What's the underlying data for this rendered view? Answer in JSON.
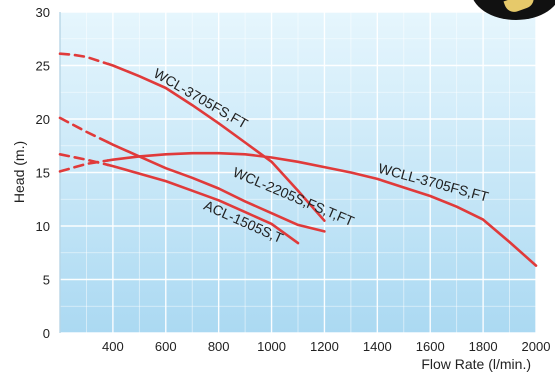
{
  "chart_data": {
    "type": "line",
    "title": "",
    "xlabel": "Flow Rate (l/min.)",
    "ylabel": "Head (m.)",
    "xlim": [
      200,
      2000
    ],
    "ylim": [
      0,
      30
    ],
    "x_ticks": [
      400,
      600,
      800,
      1000,
      1200,
      1400,
      1600,
      1800,
      2000
    ],
    "y_ticks": [
      0,
      5,
      10,
      15,
      20,
      25,
      30
    ],
    "grid": true,
    "line_color": "#e03a3a",
    "plot_bg_top": "#e6f6fd",
    "plot_bg_bottom": "#abd9f2",
    "series": [
      {
        "name": "WCL-3705FS,FT",
        "points": [
          [
            200,
            26.1
          ],
          [
            250,
            26.0
          ],
          [
            300,
            25.8
          ],
          [
            400,
            25.0
          ],
          [
            500,
            24.0
          ],
          [
            600,
            22.9
          ],
          [
            700,
            21.3
          ],
          [
            800,
            19.6
          ],
          [
            900,
            17.8
          ],
          [
            1000,
            16.0
          ],
          [
            1100,
            13.3
          ],
          [
            1200,
            10.5
          ]
        ],
        "dashed_until": 380
      },
      {
        "name": "WCLL-3705FS,FT",
        "points": [
          [
            200,
            15.1
          ],
          [
            300,
            15.8
          ],
          [
            400,
            16.2
          ],
          [
            500,
            16.5
          ],
          [
            600,
            16.7
          ],
          [
            700,
            16.8
          ],
          [
            800,
            16.8
          ],
          [
            900,
            16.7
          ],
          [
            1000,
            16.4
          ],
          [
            1100,
            16.0
          ],
          [
            1200,
            15.5
          ],
          [
            1300,
            15.0
          ],
          [
            1400,
            14.4
          ],
          [
            1500,
            13.6
          ],
          [
            1600,
            12.8
          ],
          [
            1700,
            11.8
          ],
          [
            1800,
            10.6
          ],
          [
            1900,
            8.5
          ],
          [
            2000,
            6.3
          ]
        ],
        "dashed_until": 380
      },
      {
        "name": "WCL-2205S,FS,T,FT",
        "points": [
          [
            200,
            20.1
          ],
          [
            300,
            18.8
          ],
          [
            400,
            17.6
          ],
          [
            500,
            16.5
          ],
          [
            600,
            15.4
          ],
          [
            700,
            14.5
          ],
          [
            800,
            13.5
          ],
          [
            900,
            12.3
          ],
          [
            1000,
            11.2
          ],
          [
            1100,
            10.1
          ],
          [
            1200,
            9.5
          ]
        ],
        "dashed_until": 380
      },
      {
        "name": "ACL-1505S,T",
        "points": [
          [
            200,
            16.7
          ],
          [
            300,
            16.2
          ],
          [
            400,
            15.6
          ],
          [
            500,
            14.9
          ],
          [
            600,
            14.2
          ],
          [
            700,
            13.3
          ],
          [
            800,
            12.4
          ],
          [
            900,
            11.3
          ],
          [
            1000,
            10.2
          ],
          [
            1100,
            8.4
          ]
        ],
        "dashed_until": 380
      }
    ],
    "series_labels": [
      {
        "text": "WCL-3705FS,FT",
        "x": 550,
        "y": 24.0,
        "angle": 30
      },
      {
        "text": "WCLL-3705FS,FT",
        "x": 1400,
        "y": 15.0,
        "angle": 15
      },
      {
        "text": "WCL-2205S,FS,T,FT",
        "x": 850,
        "y": 14.7,
        "angle": 23
      },
      {
        "text": "ACL-1505S,T",
        "x": 740,
        "y": 11.6,
        "angle": 24
      }
    ]
  }
}
